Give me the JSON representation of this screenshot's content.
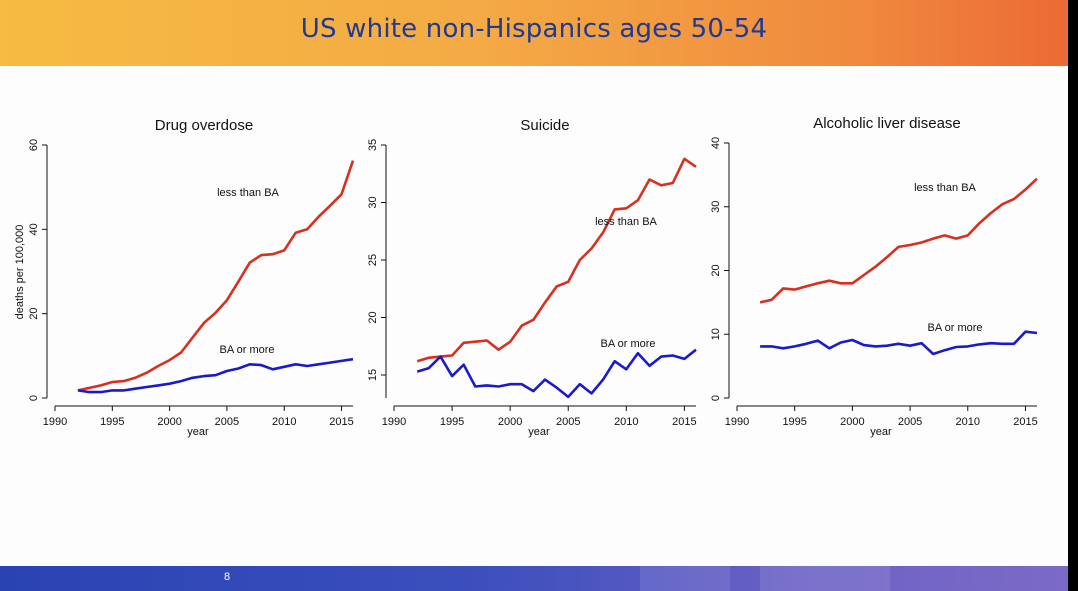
{
  "slide": {
    "title": "US white non-Hispanics ages 50-54",
    "page_number": "8"
  },
  "chart_data": [
    {
      "type": "line",
      "title": "Drug overdose",
      "xlabel": "year",
      "ylabel": "deaths per 100,000",
      "xlim": [
        1990,
        2016
      ],
      "ylim": [
        0,
        60
      ],
      "xticks": [
        1990,
        1995,
        2000,
        2005,
        2010,
        2015
      ],
      "yticks": [
        0,
        20,
        40,
        60
      ],
      "x": [
        1992,
        1993,
        1994,
        1995,
        1996,
        1997,
        1998,
        1999,
        2000,
        2001,
        2002,
        2003,
        2004,
        2005,
        2006,
        2007,
        2008,
        2009,
        2010,
        2011,
        2012,
        2013,
        2014,
        2015,
        2016
      ],
      "series": [
        {
          "name": "less than BA",
          "color": "#d7301f",
          "values": [
            1.8,
            2.4,
            3.0,
            3.8,
            4.0,
            4.8,
            6.0,
            7.6,
            9.0,
            10.8,
            14.3,
            17.8,
            20.2,
            23.2,
            27.6,
            32.1,
            33.9,
            34.1,
            35.0,
            39.2,
            40.0,
            43.0,
            45.6,
            48.3,
            56.3
          ]
        },
        {
          "name": "BA or more",
          "color": "#1a1acb",
          "values": [
            1.8,
            1.4,
            1.4,
            1.8,
            1.8,
            2.2,
            2.6,
            3.0,
            3.4,
            4.0,
            4.8,
            5.2,
            5.4,
            6.4,
            7.0,
            8.0,
            7.8,
            6.8,
            7.4,
            8.0,
            7.6,
            8.0,
            8.4,
            8.8,
            9.2
          ]
        }
      ]
    },
    {
      "type": "line",
      "title": "Suicide",
      "xlabel": "year",
      "ylabel": "",
      "xlim": [
        1990,
        2016
      ],
      "ylim": [
        13,
        35
      ],
      "xticks": [
        1990,
        1995,
        2000,
        2005,
        2010,
        2015
      ],
      "yticks": [
        15,
        20,
        25,
        30,
        35
      ],
      "x": [
        1992,
        1993,
        1994,
        1995,
        1996,
        1997,
        1998,
        1999,
        2000,
        2001,
        2002,
        2003,
        2004,
        2005,
        2006,
        2007,
        2008,
        2009,
        2010,
        2011,
        2012,
        2013,
        2014,
        2015,
        2016
      ],
      "series": [
        {
          "name": "less than BA",
          "color": "#d7301f",
          "values": [
            16.2,
            16.5,
            16.6,
            16.7,
            17.8,
            17.9,
            18.0,
            17.2,
            17.9,
            19.3,
            19.8,
            21.3,
            22.7,
            23.1,
            25.0,
            26.0,
            27.4,
            29.4,
            29.5,
            30.2,
            32.0,
            31.5,
            31.7,
            33.8,
            33.1
          ]
        },
        {
          "name": "BA or more",
          "color": "#1a1acb",
          "values": [
            15.3,
            15.6,
            16.6,
            14.9,
            15.9,
            14.0,
            14.1,
            14.0,
            14.2,
            14.2,
            13.6,
            14.6,
            13.9,
            13.1,
            14.2,
            13.4,
            14.6,
            16.2,
            15.5,
            16.9,
            15.8,
            16.6,
            16.7,
            16.4,
            17.2
          ]
        }
      ]
    },
    {
      "type": "line",
      "title": "Alcoholic liver disease",
      "xlabel": "year",
      "ylabel": "",
      "xlim": [
        1990,
        2016
      ],
      "ylim": [
        0,
        40
      ],
      "xticks": [
        1990,
        1995,
        2000,
        2005,
        2010,
        2015
      ],
      "yticks": [
        0,
        10,
        20,
        30,
        40
      ],
      "x": [
        1992,
        1993,
        1994,
        1995,
        1996,
        1997,
        1998,
        1999,
        2000,
        2001,
        2002,
        2003,
        2004,
        2005,
        2006,
        2007,
        2008,
        2009,
        2010,
        2011,
        2012,
        2013,
        2014,
        2015,
        2016
      ],
      "series": [
        {
          "name": "less than BA",
          "color": "#d7301f",
          "values": [
            15.0,
            15.4,
            17.2,
            17.0,
            17.5,
            18.0,
            18.4,
            18.0,
            18.0,
            19.3,
            20.6,
            22.1,
            23.7,
            24.0,
            24.4,
            25.0,
            25.5,
            25.0,
            25.5,
            27.4,
            29.0,
            30.4,
            31.2,
            32.7,
            34.4
          ]
        },
        {
          "name": "BA or more",
          "color": "#1a1acb",
          "values": [
            8.1,
            8.1,
            7.8,
            8.1,
            8.5,
            9.0,
            7.8,
            8.7,
            9.1,
            8.3,
            8.1,
            8.2,
            8.5,
            8.2,
            8.6,
            6.9,
            7.5,
            8.0,
            8.1,
            8.4,
            8.6,
            8.5,
            8.5,
            10.4,
            10.2
          ]
        }
      ]
    }
  ]
}
